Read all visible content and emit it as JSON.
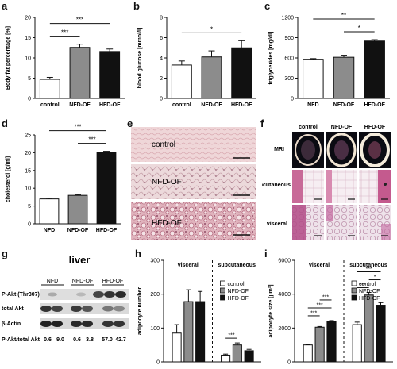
{
  "panels": {
    "a": {
      "letter": "a"
    },
    "b": {
      "letter": "b"
    },
    "c": {
      "letter": "c"
    },
    "d": {
      "letter": "d"
    },
    "e": {
      "letter": "e",
      "labels": [
        "control",
        "NFD-OF",
        "HFD-OF"
      ]
    },
    "f": {
      "letter": "f",
      "columns": [
        "control",
        "NFD-OF",
        "HFD-OF"
      ],
      "rows": [
        "MRI",
        "subcutaneous",
        "visceral"
      ]
    },
    "g": {
      "letter": "g",
      "title": "liver",
      "groups": [
        "NFD",
        "NFD-OF",
        "HFD-OF"
      ],
      "rows": [
        "P-Akt (Thr307)",
        "total Akt",
        "β-Actin"
      ],
      "ratio_label": "P-Akt/total Akt",
      "ratios": [
        "0.6",
        "9.0",
        "0.6",
        "3.8",
        "57.0",
        "42.7"
      ]
    },
    "h": {
      "letter": "h"
    },
    "i": {
      "letter": "i"
    }
  },
  "chart_data": [
    {
      "panel": "a",
      "type": "bar",
      "ylabel": "Body fat percentage [%]",
      "categories": [
        "control",
        "NFD-OF",
        "HFD-OF"
      ],
      "values": [
        4.7,
        12.6,
        11.6
      ],
      "errors": [
        0.5,
        0.8,
        0.6
      ],
      "ylim": [
        0,
        20
      ],
      "yticks": [
        "0",
        "5",
        "10",
        "15",
        "20"
      ],
      "colors": [
        "#ffffff",
        "#8c8c8c",
        "#111111"
      ],
      "significance": [
        {
          "from": 0,
          "to": 1,
          "label": "***"
        },
        {
          "from": 0,
          "to": 2,
          "label": "***"
        }
      ]
    },
    {
      "panel": "b",
      "type": "bar",
      "ylabel": "blood glucose [mmol/l]",
      "categories": [
        "control",
        "NFD-OF",
        "HFD-OF"
      ],
      "values": [
        3.3,
        4.1,
        5.0
      ],
      "errors": [
        0.4,
        0.6,
        0.7
      ],
      "ylim": [
        0,
        8
      ],
      "yticks": [
        "0",
        "2",
        "4",
        "6",
        "8"
      ],
      "colors": [
        "#ffffff",
        "#8c8c8c",
        "#111111"
      ],
      "significance": [
        {
          "from": 0,
          "to": 2,
          "label": "*"
        }
      ]
    },
    {
      "panel": "c",
      "type": "bar",
      "ylabel": "triglycerides [mg/dl]",
      "categories": [
        "NFD",
        "NFD-OF",
        "HFD-OF"
      ],
      "values": [
        580,
        610,
        850
      ],
      "errors": [
        10,
        30,
        20
      ],
      "ylim": [
        0,
        1200
      ],
      "yticks": [
        "0",
        "300",
        "600",
        "900",
        "1200"
      ],
      "colors": [
        "#ffffff",
        "#8c8c8c",
        "#111111"
      ],
      "significance": [
        {
          "from": 0,
          "to": 2,
          "label": "**"
        },
        {
          "from": 1,
          "to": 2,
          "label": "*"
        }
      ]
    },
    {
      "panel": "d",
      "type": "bar",
      "ylabel": "cholesterol [g/ml]",
      "categories": [
        "NFD",
        "NFD-OF",
        "HFD-OF"
      ],
      "values": [
        7.0,
        8.0,
        20.0
      ],
      "errors": [
        0.2,
        0.2,
        0.4
      ],
      "ylim": [
        0,
        25
      ],
      "yticks": [
        "0",
        "5",
        "10",
        "15",
        "20",
        "25"
      ],
      "colors": [
        "#ffffff",
        "#8c8c8c",
        "#111111"
      ],
      "significance": [
        {
          "from": 0,
          "to": 2,
          "label": "***"
        },
        {
          "from": 1,
          "to": 2,
          "label": "***"
        }
      ]
    },
    {
      "panel": "h",
      "type": "bar",
      "ylabel": "adipocyte number",
      "groups": [
        "visceral",
        "subcutaneous"
      ],
      "series": [
        {
          "name": "control",
          "values": [
            85,
            20
          ],
          "errors": [
            25,
            3
          ],
          "color": "#ffffff"
        },
        {
          "name": "NFD-OF",
          "values": [
            178,
            50
          ],
          "errors": [
            35,
            6
          ],
          "color": "#8c8c8c"
        },
        {
          "name": "HFD-OF",
          "values": [
            178,
            33
          ],
          "errors": [
            30,
            4
          ],
          "color": "#111111"
        }
      ],
      "ylim": [
        0,
        300
      ],
      "yticks": [
        "0",
        "100",
        "200",
        "300"
      ],
      "significance": [
        {
          "group": 1,
          "from": 0,
          "to": 1,
          "label": "***"
        }
      ]
    },
    {
      "panel": "i",
      "type": "bar",
      "ylabel": "adipocyte size [µm²]",
      "groups": [
        "visceral",
        "subcutaneous"
      ],
      "series": [
        {
          "name": "control",
          "values": [
            1000,
            2200
          ],
          "errors": [
            30,
            150
          ],
          "color": "#ffffff"
        },
        {
          "name": "NFD-OF",
          "values": [
            2050,
            3950
          ],
          "errors": [
            40,
            150
          ],
          "color": "#8c8c8c"
        },
        {
          "name": "HFD-OF",
          "values": [
            2400,
            3350
          ],
          "errors": [
            40,
            150
          ],
          "color": "#111111"
        }
      ],
      "ylim": [
        0,
        6000
      ],
      "yticks": [
        "0",
        "2000",
        "4000",
        "6000"
      ],
      "significance": [
        {
          "group": 0,
          "from": 0,
          "to": 1,
          "label": "***"
        },
        {
          "group": 0,
          "from": 0,
          "to": 2,
          "label": "***"
        },
        {
          "group": 0,
          "from": 1,
          "to": 2,
          "label": "***"
        },
        {
          "group": 1,
          "from": 0,
          "to": 1,
          "label": "***"
        },
        {
          "group": 1,
          "from": 1,
          "to": 2,
          "label": "*"
        },
        {
          "group": 1,
          "from": 0,
          "to": 2,
          "label": "***"
        }
      ]
    }
  ]
}
